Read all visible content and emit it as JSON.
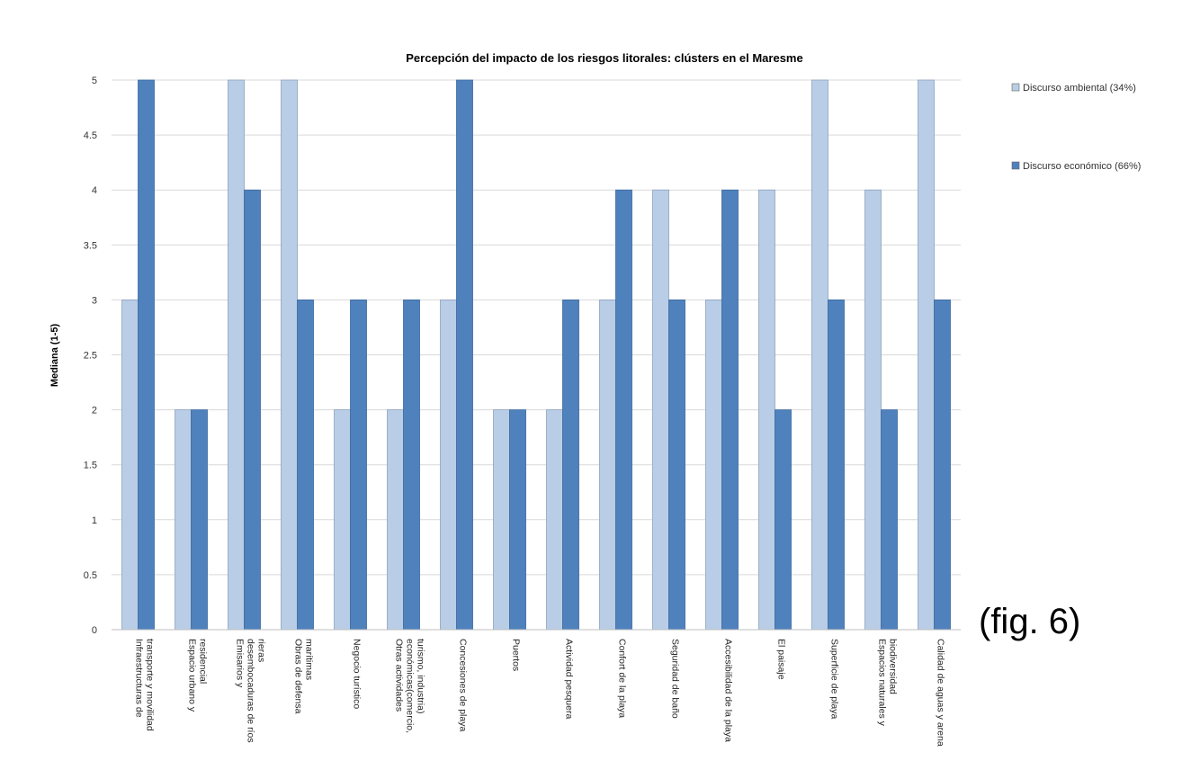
{
  "figure_label": "(fig. 6)",
  "chart_data": {
    "type": "bar",
    "title": "Percepción del impacto de los riesgos litorales: clústers en el Maresme",
    "xlabel": "",
    "ylabel": "Mediana (1-5)",
    "ylim": [
      0,
      5
    ],
    "yticks": [
      "0",
      "0.5",
      "1",
      "1.5",
      "2",
      "2.5",
      "3",
      "3.5",
      "4",
      "4.5",
      "5"
    ],
    "grid": true,
    "legend_position": "right",
    "categories": [
      [
        "Infraestructuras de",
        "transporte y movilidad"
      ],
      [
        "Espacio urbano y",
        "residencial"
      ],
      [
        "Emisarios y",
        "desembocaduras de ríos",
        "rieras"
      ],
      [
        "Obras de defensa",
        "marítimas"
      ],
      [
        "Negocio turístico"
      ],
      [
        "Otras actividades",
        "económicas(comercio,",
        "turismo, industria)"
      ],
      [
        "Concesiones de playa"
      ],
      [
        "Puertos"
      ],
      [
        "Actividad pesquera"
      ],
      [
        "Confort de la playa"
      ],
      [
        "Seguridad de baño"
      ],
      [
        "Accesibilidad de la playa"
      ],
      [
        "El paisaje"
      ],
      [
        "Superficie de playa"
      ],
      [
        "Espacios naturales y",
        "biodiversidad"
      ],
      [
        "Calidad de aguas y arena"
      ]
    ],
    "series": [
      {
        "name": "Discurso ambiental (34%)",
        "color": "#b9cde6",
        "values": [
          3,
          2,
          5,
          5,
          2,
          2,
          3,
          2,
          2,
          3,
          4,
          3,
          4,
          5,
          4,
          5
        ]
      },
      {
        "name": "Discurso económico (66%)",
        "color": "#4f81bd",
        "values": [
          5,
          2,
          4,
          3,
          3,
          3,
          5,
          2,
          3,
          4,
          3,
          4,
          2,
          3,
          2,
          3
        ]
      }
    ]
  }
}
